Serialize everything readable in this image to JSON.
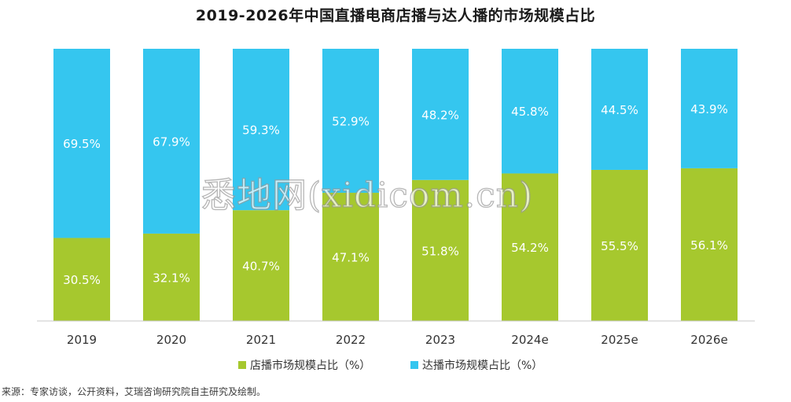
{
  "chart_data": {
    "type": "bar",
    "stacked": true,
    "title": "2019-2026年中国直播电商店播与达人播的市场规模占比",
    "categories": [
      "2019",
      "2020",
      "2021",
      "2022",
      "2023",
      "2024e",
      "2025e",
      "2026e"
    ],
    "series": [
      {
        "name": "店播市场规模占比（%）",
        "color": "#a6c82e",
        "values": [
          30.5,
          32.1,
          40.7,
          47.1,
          51.8,
          54.2,
          55.5,
          56.1
        ],
        "labels": [
          "30.5%",
          "32.1%",
          "40.7%",
          "47.1%",
          "51.8%",
          "54.2%",
          "55.5%",
          "56.1%"
        ]
      },
      {
        "name": "达播市场规模占比（%）",
        "color": "#35c6ef",
        "values": [
          69.5,
          67.9,
          59.3,
          52.9,
          48.2,
          45.8,
          44.5,
          43.9
        ],
        "labels": [
          "69.5%",
          "67.9%",
          "59.3%",
          "52.9%",
          "48.2%",
          "45.8%",
          "44.5%",
          "43.9%"
        ]
      }
    ],
    "ylim": [
      0,
      100
    ],
    "grid": false,
    "legend": "bottom-center"
  },
  "source": "来源：专家访谈，公开资料，艾瑞咨询研究院自主研究及绘制。",
  "watermark": "悉地网(xidicom.cn)"
}
